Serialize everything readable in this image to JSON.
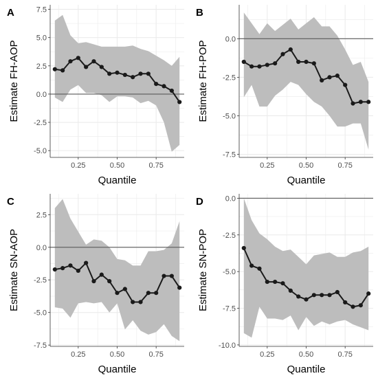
{
  "colors": {
    "band": "#bdbdbd",
    "line": "#1a1a1a",
    "zero_line": "#5a5a5a",
    "grid": "#ebebeb",
    "axis": "#333333"
  },
  "chart_data": [
    {
      "type": "line",
      "panel_label": "A",
      "xlabel": "Quantile",
      "ylabel": "Estimate FH-AOP",
      "xlim": [
        0.07,
        0.93
      ],
      "ylim": [
        -5.6,
        7.9
      ],
      "xticks": [
        0.25,
        0.5,
        0.75
      ],
      "xtick_labels": [
        "0.25",
        "0.50",
        "0.75"
      ],
      "yticks": [
        -5.0,
        -2.5,
        0.0,
        2.5,
        5.0,
        7.5
      ],
      "ytick_labels": [
        "-5.0",
        "-2.5",
        "0.0",
        "2.5",
        "5.0",
        "7.5"
      ],
      "hline": 0,
      "grid": true,
      "x": [
        0.1,
        0.15,
        0.2,
        0.25,
        0.3,
        0.35,
        0.4,
        0.45,
        0.5,
        0.55,
        0.6,
        0.65,
        0.7,
        0.75,
        0.8,
        0.85,
        0.9
      ],
      "estimate": [
        2.2,
        2.1,
        2.9,
        3.2,
        2.4,
        2.9,
        2.4,
        1.8,
        1.9,
        1.7,
        1.5,
        1.8,
        1.8,
        0.9,
        0.7,
        0.3,
        -0.7
      ],
      "upper": [
        6.5,
        7.0,
        5.2,
        4.5,
        4.6,
        4.4,
        4.2,
        4.2,
        4.2,
        4.2,
        4.3,
        4.0,
        3.8,
        3.4,
        3.0,
        2.5,
        3.3
      ],
      "lower": [
        -0.3,
        -0.7,
        0.4,
        0.8,
        0.1,
        0.1,
        -0.1,
        -0.7,
        -0.2,
        -0.2,
        -0.3,
        -0.8,
        -0.6,
        -1.0,
        -2.5,
        -5.1,
        -4.5
      ]
    },
    {
      "type": "line",
      "panel_label": "B",
      "xlabel": "Quantile",
      "ylabel": "Estimate FH-POP",
      "xlim": [
        0.07,
        0.93
      ],
      "ylim": [
        -7.7,
        2.2
      ],
      "xticks": [
        0.25,
        0.5,
        0.75
      ],
      "xtick_labels": [
        "0.25",
        "0.50",
        "0.75"
      ],
      "yticks": [
        -7.5,
        -5.0,
        -2.5,
        0.0
      ],
      "ytick_labels": [
        "-7.5",
        "-5.0",
        "-2.5",
        "0.0"
      ],
      "hline": 0,
      "grid": true,
      "x": [
        0.1,
        0.15,
        0.2,
        0.25,
        0.3,
        0.35,
        0.4,
        0.45,
        0.5,
        0.55,
        0.6,
        0.65,
        0.7,
        0.75,
        0.8,
        0.85,
        0.9
      ],
      "estimate": [
        -1.5,
        -1.8,
        -1.8,
        -1.7,
        -1.6,
        -1.0,
        -0.7,
        -1.5,
        -1.5,
        -1.6,
        -2.7,
        -2.5,
        -2.4,
        -3.0,
        -4.2,
        -4.1,
        -4.1
      ],
      "upper": [
        1.7,
        1.0,
        0.3,
        1.0,
        0.5,
        0.9,
        1.3,
        0.6,
        1.0,
        1.4,
        0.8,
        0.8,
        0.2,
        -0.7,
        -1.7,
        -1.5,
        -2.8
      ],
      "lower": [
        -3.8,
        -3.0,
        -4.4,
        -4.4,
        -3.7,
        -3.3,
        -2.8,
        -3.0,
        -3.6,
        -4.1,
        -4.4,
        -5.0,
        -5.7,
        -5.7,
        -5.5,
        -5.5,
        -7.2
      ]
    },
    {
      "type": "line",
      "panel_label": "C",
      "xlabel": "Quantile",
      "ylabel": "Estimate SN-AOP",
      "xlim": [
        0.07,
        0.93
      ],
      "ylim": [
        -7.6,
        4.1
      ],
      "xticks": [
        0.25,
        0.5,
        0.75
      ],
      "xtick_labels": [
        "0.25",
        "0.50",
        "0.75"
      ],
      "yticks": [
        -7.5,
        -5.0,
        -2.5,
        0.0,
        2.5
      ],
      "ytick_labels": [
        "-7.5",
        "-5.0",
        "-2.5",
        "0.0",
        "2.5"
      ],
      "hline": 0,
      "grid": true,
      "x": [
        0.1,
        0.15,
        0.2,
        0.25,
        0.3,
        0.35,
        0.4,
        0.45,
        0.5,
        0.55,
        0.6,
        0.65,
        0.7,
        0.75,
        0.8,
        0.85,
        0.9
      ],
      "estimate": [
        -1.7,
        -1.6,
        -1.4,
        -1.8,
        -1.2,
        -2.6,
        -2.1,
        -2.6,
        -3.5,
        -3.2,
        -4.2,
        -4.2,
        -3.5,
        -3.5,
        -2.2,
        -2.2,
        -3.1
      ],
      "upper": [
        3.0,
        3.7,
        2.2,
        1.2,
        0.2,
        0.6,
        0.5,
        0.0,
        -0.9,
        -1.0,
        -1.4,
        -1.4,
        -0.3,
        -0.3,
        -0.2,
        0.3,
        2.0
      ],
      "lower": [
        -4.6,
        -4.7,
        -5.4,
        -4.3,
        -4.2,
        -4.3,
        -4.2,
        -5.0,
        -4.3,
        -6.3,
        -5.6,
        -6.4,
        -6.7,
        -6.5,
        -5.9,
        -6.8,
        -7.2
      ]
    },
    {
      "type": "line",
      "panel_label": "D",
      "xlabel": "Quantile",
      "ylabel": "Estimate SN-POP",
      "xlim": [
        0.07,
        0.93
      ],
      "ylim": [
        -10.1,
        0.3
      ],
      "xticks": [
        0.25,
        0.5,
        0.75
      ],
      "xtick_labels": [
        "0.25",
        "0.50",
        "0.75"
      ],
      "yticks": [
        -10.0,
        -7.5,
        -5.0,
        -2.5,
        0.0
      ],
      "ytick_labels": [
        "-10.0",
        "-7.5",
        "-5.0",
        "-2.5",
        "0.0"
      ],
      "hline": 0,
      "grid": true,
      "x": [
        0.1,
        0.15,
        0.2,
        0.25,
        0.3,
        0.35,
        0.4,
        0.45,
        0.5,
        0.55,
        0.6,
        0.65,
        0.7,
        0.75,
        0.8,
        0.85,
        0.9
      ],
      "estimate": [
        -3.4,
        -4.6,
        -4.8,
        -5.7,
        -5.7,
        -5.8,
        -6.3,
        -6.7,
        -6.9,
        -6.6,
        -6.6,
        -6.6,
        -6.4,
        -7.1,
        -7.4,
        -7.3,
        -6.5
      ],
      "upper": [
        0.0,
        -1.5,
        -2.4,
        -2.8,
        -3.3,
        -3.6,
        -3.5,
        -4.0,
        -4.5,
        -3.9,
        -3.8,
        -3.7,
        -4.0,
        -4.0,
        -3.7,
        -3.6,
        -3.3
      ],
      "lower": [
        -9.2,
        -9.5,
        -7.4,
        -8.2,
        -8.2,
        -8.3,
        -8.0,
        -9.0,
        -8.1,
        -8.7,
        -8.4,
        -8.6,
        -8.4,
        -8.3,
        -8.6,
        -8.8,
        -9.0
      ]
    }
  ]
}
